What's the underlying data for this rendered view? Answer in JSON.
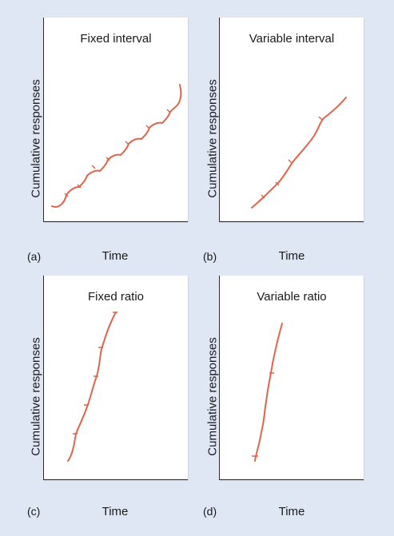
{
  "panels": [
    {
      "id": "a",
      "title": "Fixed interval",
      "tag": "(a)",
      "ylabel": "Cumulative responses",
      "xlabel": "Time"
    },
    {
      "id": "b",
      "title": "Variable interval",
      "tag": "(b)",
      "ylabel": "Cumulative responses",
      "xlabel": "Time"
    },
    {
      "id": "c",
      "title": "Fixed ratio",
      "tag": "(c)",
      "ylabel": "Cumulative responses",
      "xlabel": "Time"
    },
    {
      "id": "d",
      "title": "Variable ratio",
      "tag": "(d)",
      "ylabel": "Cumulative responses",
      "xlabel": "Time"
    }
  ],
  "colors": {
    "background": "#dfe7f4",
    "curve": "#e0644b",
    "axis": "#2b2b2b"
  }
}
